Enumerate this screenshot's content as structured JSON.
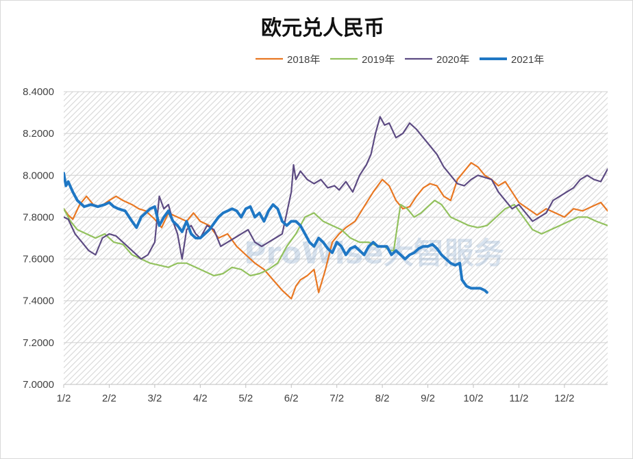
{
  "chart_data": {
    "type": "line",
    "title": "欧元兑人民币",
    "watermark": "ProWise大智服务",
    "xlabel": "",
    "ylabel": "",
    "ylim": [
      7.0,
      8.4
    ],
    "y_ticks": [
      "7.0000",
      "7.2000",
      "7.4000",
      "7.6000",
      "7.8000",
      "8.0000",
      "8.2000",
      "8.4000"
    ],
    "x_ticks": [
      "1/2",
      "2/2",
      "3/2",
      "4/2",
      "5/2",
      "6/2",
      "7/2",
      "8/2",
      "9/2",
      "10/2",
      "11/2",
      "12/2"
    ],
    "x_unit": "month (1 = 1/2)",
    "xlim": [
      1,
      12.95
    ],
    "grid": true,
    "legend_position": "top",
    "series": [
      {
        "name": "2018年",
        "color": "#e87722",
        "x": [
          1.0,
          1.1,
          1.2,
          1.35,
          1.5,
          1.65,
          1.8,
          2.0,
          2.15,
          2.3,
          2.5,
          2.65,
          2.8,
          3.0,
          3.15,
          3.3,
          3.5,
          3.7,
          3.85,
          4.0,
          4.2,
          4.4,
          4.6,
          4.8,
          5.0,
          5.2,
          5.4,
          5.6,
          5.8,
          6.0,
          6.1,
          6.2,
          6.35,
          6.5,
          6.6,
          6.75,
          6.9,
          7.05,
          7.2,
          7.4,
          7.6,
          7.8,
          8.0,
          8.15,
          8.3,
          8.45,
          8.6,
          8.75,
          8.9,
          9.05,
          9.2,
          9.35,
          9.5,
          9.65,
          9.8,
          9.95,
          10.1,
          10.25,
          10.4,
          10.55,
          10.7,
          10.85,
          11.0,
          11.2,
          11.4,
          11.6,
          11.8,
          12.0,
          12.2,
          12.4,
          12.6,
          12.8,
          12.95
        ],
        "values": [
          7.84,
          7.81,
          7.79,
          7.86,
          7.9,
          7.86,
          7.85,
          7.88,
          7.9,
          7.88,
          7.86,
          7.84,
          7.83,
          7.79,
          7.75,
          7.82,
          7.8,
          7.78,
          7.82,
          7.78,
          7.76,
          7.7,
          7.72,
          7.66,
          7.62,
          7.58,
          7.55,
          7.5,
          7.45,
          7.41,
          7.47,
          7.5,
          7.52,
          7.55,
          7.44,
          7.55,
          7.68,
          7.72,
          7.75,
          7.78,
          7.85,
          7.92,
          7.98,
          7.95,
          7.88,
          7.84,
          7.85,
          7.9,
          7.94,
          7.96,
          7.95,
          7.9,
          7.88,
          7.98,
          8.02,
          8.06,
          8.04,
          8.0,
          7.98,
          7.95,
          7.97,
          7.92,
          7.87,
          7.84,
          7.81,
          7.84,
          7.82,
          7.8,
          7.84,
          7.83,
          7.85,
          7.87,
          7.83
        ]
      },
      {
        "name": "2019年",
        "color": "#92c15d",
        "x": [
          1.0,
          1.15,
          1.3,
          1.5,
          1.7,
          1.9,
          2.1,
          2.3,
          2.5,
          2.7,
          2.9,
          3.1,
          3.3,
          3.5,
          3.7,
          3.9,
          4.1,
          4.3,
          4.5,
          4.7,
          4.9,
          5.1,
          5.3,
          5.5,
          5.7,
          5.9,
          6.1,
          6.3,
          6.5,
          6.7,
          6.9,
          7.1,
          7.3,
          7.5,
          7.7,
          7.9,
          8.05,
          8.15,
          8.25,
          8.4,
          8.55,
          8.7,
          8.85,
          9.0,
          9.15,
          9.3,
          9.5,
          9.7,
          9.9,
          10.1,
          10.3,
          10.5,
          10.7,
          10.9,
          11.1,
          11.3,
          11.5,
          11.7,
          11.9,
          12.1,
          12.3,
          12.5,
          12.7,
          12.95
        ],
        "values": [
          7.84,
          7.78,
          7.74,
          7.72,
          7.7,
          7.72,
          7.68,
          7.67,
          7.62,
          7.6,
          7.58,
          7.57,
          7.56,
          7.58,
          7.58,
          7.56,
          7.54,
          7.52,
          7.53,
          7.56,
          7.55,
          7.52,
          7.53,
          7.55,
          7.58,
          7.66,
          7.72,
          7.8,
          7.82,
          7.78,
          7.76,
          7.74,
          7.7,
          7.68,
          7.68,
          7.66,
          7.66,
          7.64,
          7.64,
          7.86,
          7.84,
          7.8,
          7.82,
          7.85,
          7.88,
          7.86,
          7.8,
          7.78,
          7.76,
          7.75,
          7.76,
          7.8,
          7.84,
          7.86,
          7.8,
          7.74,
          7.72,
          7.74,
          7.76,
          7.78,
          7.8,
          7.8,
          7.78,
          7.76
        ]
      },
      {
        "name": "2020年",
        "color": "#5c4a82",
        "x": [
          1.0,
          1.1,
          1.25,
          1.4,
          1.55,
          1.7,
          1.85,
          2.0,
          2.15,
          2.3,
          2.5,
          2.7,
          2.85,
          3.0,
          3.1,
          3.2,
          3.3,
          3.4,
          3.5,
          3.6,
          3.7,
          3.8,
          3.9,
          4.0,
          4.15,
          4.3,
          4.45,
          4.6,
          4.75,
          4.9,
          5.05,
          5.2,
          5.35,
          5.5,
          5.65,
          5.8,
          5.9,
          6.0,
          6.05,
          6.1,
          6.2,
          6.35,
          6.5,
          6.65,
          6.8,
          6.95,
          7.05,
          7.2,
          7.35,
          7.5,
          7.65,
          7.75,
          7.85,
          7.95,
          8.05,
          8.15,
          8.3,
          8.45,
          8.6,
          8.75,
          8.9,
          9.05,
          9.2,
          9.35,
          9.5,
          9.65,
          9.8,
          9.95,
          10.1,
          10.25,
          10.4,
          10.55,
          10.7,
          10.85,
          11.0,
          11.15,
          11.3,
          11.45,
          11.6,
          11.75,
          11.9,
          12.05,
          12.2,
          12.35,
          12.5,
          12.65,
          12.8,
          12.95
        ],
        "values": [
          7.8,
          7.79,
          7.72,
          7.68,
          7.64,
          7.62,
          7.7,
          7.72,
          7.71,
          7.68,
          7.64,
          7.6,
          7.62,
          7.68,
          7.9,
          7.84,
          7.86,
          7.78,
          7.72,
          7.6,
          7.74,
          7.76,
          7.72,
          7.7,
          7.76,
          7.74,
          7.66,
          7.68,
          7.7,
          7.72,
          7.74,
          7.68,
          7.66,
          7.68,
          7.7,
          7.72,
          7.82,
          7.92,
          8.05,
          7.98,
          8.02,
          7.98,
          7.96,
          7.98,
          7.94,
          7.95,
          7.93,
          7.97,
          7.92,
          8.0,
          8.05,
          8.1,
          8.2,
          8.28,
          8.24,
          8.25,
          8.18,
          8.2,
          8.25,
          8.22,
          8.18,
          8.14,
          8.1,
          8.04,
          8.0,
          7.96,
          7.95,
          7.98,
          8.0,
          7.99,
          7.98,
          7.92,
          7.88,
          7.84,
          7.86,
          7.82,
          7.78,
          7.8,
          7.82,
          7.88,
          7.9,
          7.92,
          7.94,
          7.98,
          8.0,
          7.98,
          7.97,
          8.03
        ]
      },
      {
        "name": "2021年",
        "color": "#1f77c4",
        "x": [
          1.0,
          1.05,
          1.1,
          1.2,
          1.3,
          1.45,
          1.6,
          1.75,
          1.9,
          2.0,
          2.1,
          2.2,
          2.35,
          2.5,
          2.6,
          2.7,
          2.8,
          2.9,
          3.0,
          3.1,
          3.2,
          3.3,
          3.4,
          3.5,
          3.6,
          3.7,
          3.8,
          3.9,
          4.0,
          4.1,
          4.2,
          4.3,
          4.4,
          4.5,
          4.6,
          4.7,
          4.8,
          4.9,
          5.0,
          5.1,
          5.2,
          5.3,
          5.4,
          5.5,
          5.6,
          5.7,
          5.8,
          5.9,
          6.0,
          6.1,
          6.2,
          6.3,
          6.4,
          6.5,
          6.6,
          6.7,
          6.8,
          6.9,
          7.0,
          7.1,
          7.2,
          7.3,
          7.4,
          7.5,
          7.6,
          7.7,
          7.8,
          7.9,
          8.0,
          8.1,
          8.2,
          8.3,
          8.4,
          8.5,
          8.6,
          8.7,
          8.8,
          8.9,
          9.0,
          9.1,
          9.2,
          9.3,
          9.4,
          9.5,
          9.6,
          9.7,
          9.75,
          9.85,
          9.95,
          10.05,
          10.15,
          10.25,
          10.3
        ],
        "values": [
          8.01,
          7.95,
          7.97,
          7.92,
          7.88,
          7.85,
          7.86,
          7.85,
          7.86,
          7.87,
          7.85,
          7.84,
          7.83,
          7.78,
          7.75,
          7.8,
          7.82,
          7.84,
          7.85,
          7.76,
          7.8,
          7.83,
          7.78,
          7.76,
          7.73,
          7.78,
          7.72,
          7.7,
          7.7,
          7.72,
          7.74,
          7.77,
          7.8,
          7.82,
          7.83,
          7.84,
          7.83,
          7.8,
          7.84,
          7.85,
          7.8,
          7.82,
          7.78,
          7.83,
          7.86,
          7.84,
          7.78,
          7.76,
          7.78,
          7.78,
          7.76,
          7.72,
          7.68,
          7.66,
          7.7,
          7.68,
          7.65,
          7.63,
          7.68,
          7.66,
          7.62,
          7.65,
          7.66,
          7.64,
          7.62,
          7.66,
          7.68,
          7.66,
          7.66,
          7.66,
          7.62,
          7.64,
          7.62,
          7.6,
          7.62,
          7.63,
          7.65,
          7.66,
          7.66,
          7.67,
          7.65,
          7.62,
          7.6,
          7.58,
          7.57,
          7.58,
          7.5,
          7.47,
          7.46,
          7.46,
          7.46,
          7.45,
          7.44
        ]
      }
    ]
  }
}
